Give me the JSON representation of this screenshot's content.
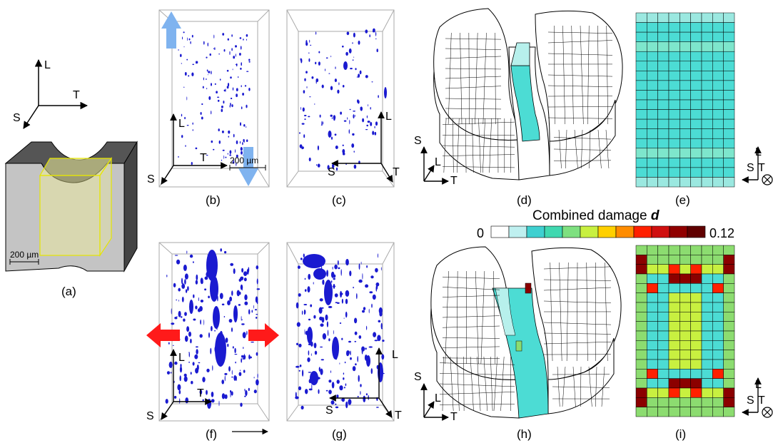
{
  "panels": {
    "a": {
      "caption": "(a)",
      "axis_L": "L",
      "axis_T": "T",
      "axis_S": "S",
      "scale": "200 µm"
    },
    "b": {
      "caption": "(b)",
      "axis_L": "L",
      "axis_T": "T",
      "axis_S": "S",
      "scale": "200 µm"
    },
    "c": {
      "caption": "(c)",
      "axis_L": "L",
      "axis_T": "T",
      "axis_S": "S"
    },
    "d": {
      "caption": "(d)",
      "axis_S": "S",
      "axis_L": "L",
      "axis_T": "T"
    },
    "e": {
      "caption": "(e)",
      "axis_L": "L",
      "axis_S": "S",
      "axis_T": "T"
    },
    "f": {
      "caption": "(f)",
      "axis_L": "L",
      "axis_T": "T",
      "axis_S": "S"
    },
    "g": {
      "caption": "(g)",
      "axis_L": "L",
      "axis_T": "T",
      "axis_S": "S"
    },
    "h": {
      "caption": "(h)",
      "axis_S": "S",
      "axis_L": "L",
      "axis_T": "T"
    },
    "i": {
      "caption": "(i)",
      "axis_L": "L",
      "axis_S": "S",
      "axis_T": "T"
    }
  },
  "colorbar": {
    "title": "Combined damage",
    "title_symbol": "d",
    "min_label": "0",
    "max_label": "0.12",
    "colors": [
      "#ffffff",
      "#bff0f0",
      "#3fd0d0",
      "#40d8b0",
      "#7ee080",
      "#c8f040",
      "#ffd000",
      "#ff8c00",
      "#ff2000",
      "#d01010",
      "#900000",
      "#600000"
    ]
  },
  "colors": {
    "void": "#1a1ad0",
    "load_arrow_blue": "#7fb3ef",
    "load_arrow_red": "#ff1a1a",
    "mesh_cyan": "#4cdcd4",
    "mesh_green": "#8cdc70",
    "mesh_darkred": "#8b0000"
  }
}
